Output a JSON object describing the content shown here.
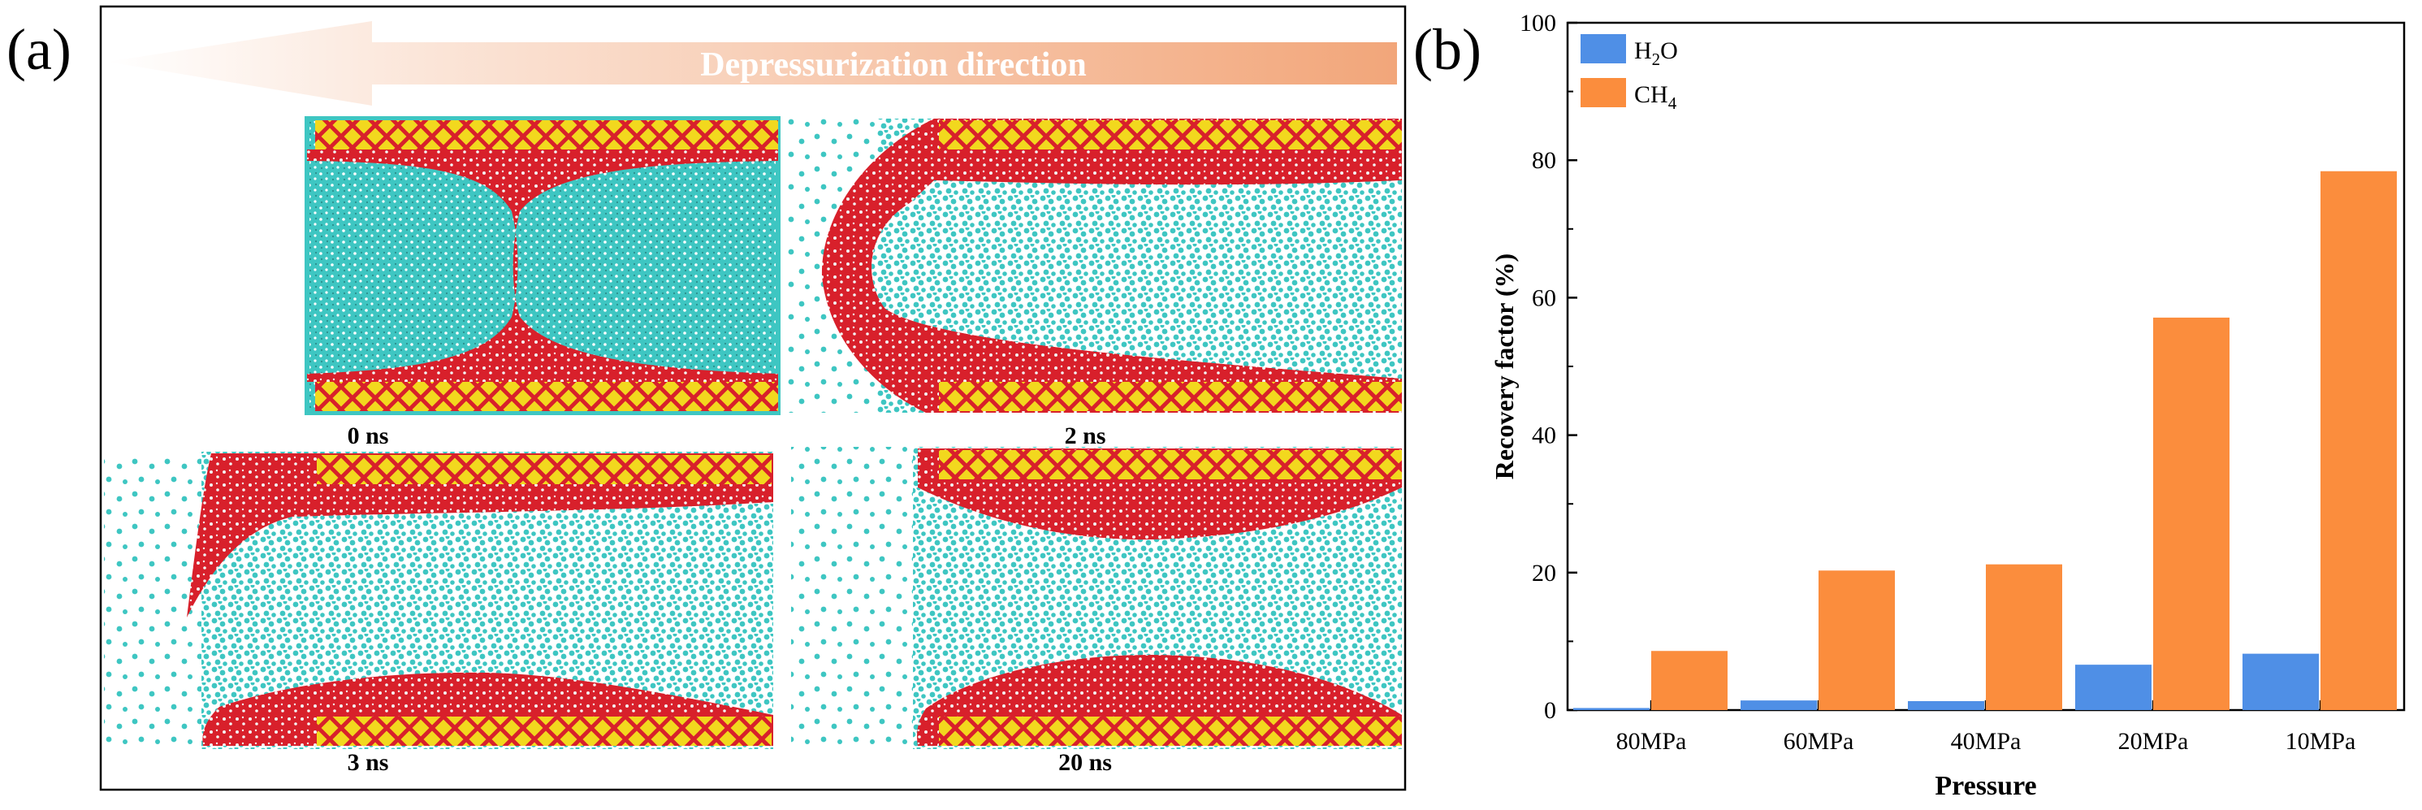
{
  "panel_a": {
    "label": "(a)",
    "arrow_label": "Depressurization direction",
    "snapshots": [
      {
        "time": "0 ns"
      },
      {
        "time": "2 ns"
      },
      {
        "time": "3 ns"
      },
      {
        "time": "20 ns"
      }
    ],
    "colors": {
      "methane": "#3ec6c2",
      "water": "#d8202b",
      "wall_yellow": "#f2d81e",
      "wall_red": "#d8202b",
      "arrow": "#f2a67a"
    }
  },
  "panel_b": {
    "label": "(b)"
  },
  "chart_data": {
    "type": "bar",
    "title": "",
    "xlabel": "Pressure",
    "ylabel": "Recovery factor (%)",
    "ylim": [
      0,
      100
    ],
    "yticks": [
      0,
      20,
      40,
      60,
      80,
      100
    ],
    "categories": [
      "80MPa",
      "60MPa",
      "40MPa",
      "20MPa",
      "10MPa"
    ],
    "series": [
      {
        "name": "H2O",
        "label_main": "H",
        "label_sub": "2",
        "label_tail": "O",
        "color": "#4f8fe6",
        "values": [
          0.3,
          1.4,
          1.3,
          6.6,
          8.2
        ]
      },
      {
        "name": "CH4",
        "label_main": "CH",
        "label_sub": "4",
        "label_tail": "",
        "color": "#fb8d3d",
        "values": [
          8.6,
          20.3,
          21.2,
          57.1,
          78.4
        ]
      }
    ],
    "legend": "top-left",
    "grid": false
  }
}
